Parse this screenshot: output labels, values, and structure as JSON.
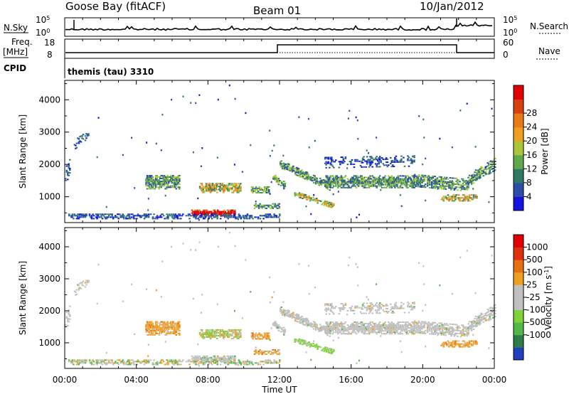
{
  "header": {
    "station": "Goose Bay (fitACF)",
    "beam": "Beam 01",
    "date": "10/Jan/2012"
  },
  "top_panels": {
    "nsky_label": "N.Sky",
    "nsearch_label": "N.Search",
    "count_ticks": [
      "10^5",
      "10^0"
    ],
    "freq_label": "Freq.",
    "freq_unit": "[MHz]",
    "freq_ticks": [
      "18",
      "8"
    ],
    "nave_ticks": [
      "60",
      "0"
    ],
    "nave_label": "Nave",
    "cpid_label": "CPID",
    "cpid_value": "themis (tau) 3310"
  },
  "chart_data": [
    {
      "type": "heatmap",
      "panel": "power",
      "ylabel": "Slant Range [km]",
      "yticks": [
        1000,
        2000,
        3000,
        4000
      ],
      "ylim": [
        200,
        4600
      ],
      "xlim": [
        0,
        24
      ],
      "colorbar": {
        "label": "Power [dB]",
        "ticks": [
          "4",
          "8",
          "12",
          "16",
          "20",
          "24",
          "28"
        ],
        "colors": [
          "#1414e0",
          "#2c4ea8",
          "#2f7a64",
          "#5fa84c",
          "#a8c638",
          "#f0a020",
          "#e87a18",
          "#d84010",
          "#e00000"
        ]
      }
    },
    {
      "type": "heatmap",
      "panel": "velocity",
      "xlabel": "Time UT",
      "ylabel": "Slant Range [km]",
      "xticks": [
        "00:00",
        "04:00",
        "08:00",
        "12:00",
        "16:00",
        "20:00",
        "00:00"
      ],
      "yticks": [
        1000,
        2000,
        3000,
        4000
      ],
      "ylim": [
        200,
        4600
      ],
      "xlim": [
        0,
        24
      ],
      "colorbar": {
        "label": "Velocity [m s^-1]",
        "ticks": [
          "1000",
          "500",
          "100",
          "25",
          "-25",
          "-100",
          "-500",
          "-1000"
        ],
        "colors": [
          "#2040c0",
          "#2e7c4a",
          "#54b848",
          "#7fd23a",
          "#c0c0c0",
          "#c0c0c0",
          "#f0a020",
          "#e87010",
          "#e03010",
          "#e00000"
        ]
      }
    }
  ]
}
